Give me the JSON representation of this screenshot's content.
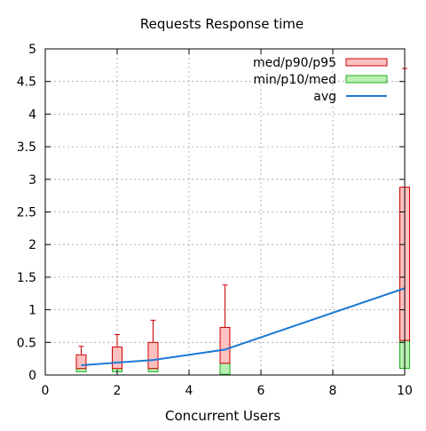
{
  "chart_data": {
    "type": "box",
    "title": "Requests Response time",
    "xlabel": "Concurrent Users",
    "ylabel": "",
    "xlim": [
      0,
      10
    ],
    "ylim": [
      0,
      5
    ],
    "x_ticks": [
      0,
      2,
      4,
      6,
      8,
      10
    ],
    "y_ticks": [
      0,
      0.5,
      1,
      1.5,
      2,
      2.5,
      3,
      3.5,
      4,
      4.5,
      5
    ],
    "y_tick_labels": [
      "0",
      "0.5",
      "1",
      "1.5",
      "2",
      "2.5",
      "3",
      "3.5",
      "4",
      "4.5",
      "5"
    ],
    "x_tick_labels": [
      "0",
      "2",
      "4",
      "6",
      "8",
      "10"
    ],
    "grid": true,
    "legend_position": "top-right",
    "legend": [
      {
        "label": "med/p90/p95",
        "kind": "box",
        "color": "#ffc0c0",
        "stroke": "#cc0000"
      },
      {
        "label": "min/p10/med",
        "kind": "box",
        "color": "#b8f0b0",
        "stroke": "#22aa22"
      },
      {
        "label": "avg",
        "kind": "line",
        "color": "#1c78d4"
      }
    ],
    "boxes": [
      {
        "x": 1,
        "min": 0.0,
        "p10": 0.05,
        "med": 0.1,
        "p90": 0.31,
        "p95": 0.44
      },
      {
        "x": 2,
        "min": 0.0,
        "p10": 0.05,
        "med": 0.1,
        "p90": 0.43,
        "p95": 0.62
      },
      {
        "x": 3,
        "min": 0.0,
        "p10": 0.05,
        "med": 0.1,
        "p90": 0.5,
        "p95": 0.84
      },
      {
        "x": 5,
        "min": 0.0,
        "p10": 0.01,
        "med": 0.18,
        "p90": 0.73,
        "p95": 1.38
      },
      {
        "x": 10,
        "min": 0.1,
        "p10": 0.1,
        "med": 0.53,
        "p90": 2.88,
        "p95": 4.7
      }
    ],
    "avg_series": {
      "name": "avg",
      "x": [
        1,
        2,
        3,
        5,
        10
      ],
      "values": [
        0.15,
        0.19,
        0.23,
        0.39,
        1.33
      ]
    },
    "colors": {
      "box_upper_fill": "#ffc0c0",
      "box_upper_stroke": "#cc0000",
      "box_lower_fill": "#b8f0b0",
      "box_lower_stroke": "#22aa22",
      "whisker": "#cc0000",
      "avg_line": "#1c78d4",
      "grid": "#a0a0a0",
      "axis": "#000000"
    }
  }
}
